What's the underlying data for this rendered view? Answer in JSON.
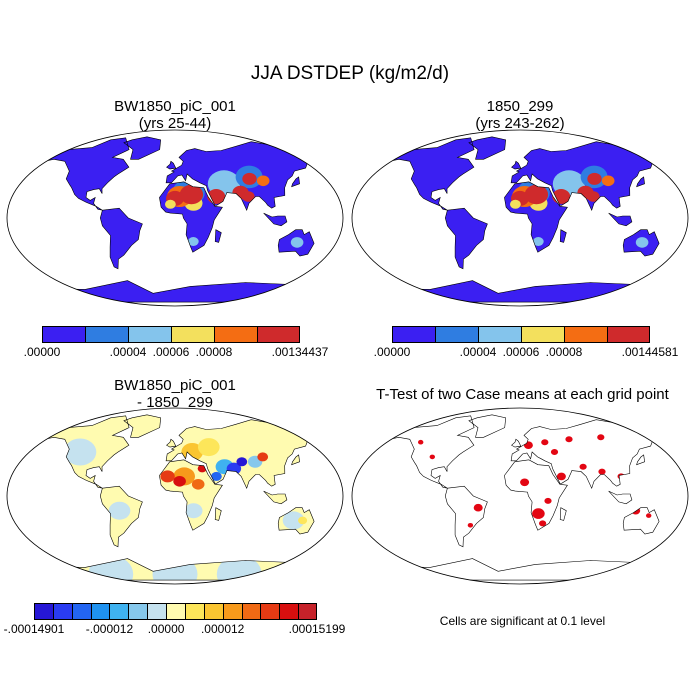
{
  "figure": {
    "title": "JJA DSTDEP (kg/m2/d)"
  },
  "panels": [
    {
      "id": "case1",
      "title_line1": "BW1850_piC_001",
      "title_line2": "(yrs 25-44)"
    },
    {
      "id": "case2",
      "title_line1": "1850_299",
      "title_line2": "(yrs 243-262)"
    },
    {
      "id": "diff",
      "title_line1": "BW1850_piC_001",
      "title_line2": "- 1850_299"
    },
    {
      "id": "ttest",
      "title_line1": "T-Test of two Case means at each grid point",
      "footnote": "Cells are significant at 0.1 level"
    }
  ],
  "colors": {
    "land_low": "#3b1ff2",
    "ocean": "#ffffff",
    "coast": "#000000",
    "significant": "#e30613"
  },
  "chart_data": [
    {
      "type": "heatmap",
      "name": "BW1850_piC_001 (yrs 25-44)",
      "variable": "DSTDEP",
      "season": "JJA",
      "units": "kg/m2/d",
      "colorbar": {
        "colors": [
          "#3b1ff2",
          "#2f7de1",
          "#84c4ec",
          "#f3e05d",
          "#f46d13",
          "#cf2a2c"
        ],
        "tick_labels": [
          ".00000",
          ".00004",
          ".00006",
          ".00008",
          ".00134437"
        ],
        "tick_after_box": [
          0,
          2,
          3,
          4,
          6
        ]
      },
      "regions": [
        {
          "region": "North Africa / Sahara",
          "level": "max"
        },
        {
          "region": "Arabian Peninsula",
          "level": "max"
        },
        {
          "region": "Indian subcontinent",
          "level": "max"
        },
        {
          "region": "Central Asia / Taklamakan",
          "level": "high"
        },
        {
          "region": "Sahel",
          "level": "medium"
        },
        {
          "region": "Australia interior",
          "level": "low-medium"
        },
        {
          "region": "Rest of land",
          "level": "min"
        }
      ]
    },
    {
      "type": "heatmap",
      "name": "1850_299 (yrs 243-262)",
      "variable": "DSTDEP",
      "season": "JJA",
      "units": "kg/m2/d",
      "colorbar": {
        "colors": [
          "#3b1ff2",
          "#2f7de1",
          "#84c4ec",
          "#f3e05d",
          "#f46d13",
          "#cf2a2c"
        ],
        "tick_labels": [
          ".00000",
          ".00004",
          ".00006",
          ".00008",
          ".00144581"
        ],
        "tick_after_box": [
          0,
          2,
          3,
          4,
          6
        ]
      },
      "regions": [
        {
          "region": "North Africa / Sahara",
          "level": "max"
        },
        {
          "region": "Arabian Peninsula",
          "level": "max"
        },
        {
          "region": "Indian subcontinent",
          "level": "max"
        },
        {
          "region": "Central Asia / Taklamakan",
          "level": "high"
        },
        {
          "region": "Sahel",
          "level": "medium"
        },
        {
          "region": "Australia interior",
          "level": "low-medium"
        },
        {
          "region": "Rest of land",
          "level": "min"
        }
      ]
    },
    {
      "type": "heatmap",
      "name": "BW1850_piC_001 - 1850_299",
      "variable": "DSTDEP difference",
      "units": "kg/m2/d",
      "colorbar": {
        "colors": [
          "#2617d6",
          "#2a3cf2",
          "#2365f2",
          "#1f92f0",
          "#3fb2f0",
          "#86c8ec",
          "#c5e2ef",
          "#fffbb0",
          "#fde65a",
          "#fac531",
          "#f79a1b",
          "#f06a14",
          "#e63b14",
          "#d80f0f",
          "#c6222a"
        ],
        "tick_labels": [
          "-.00014901",
          "-.000012",
          ".00000",
          ".000012",
          ".00015199"
        ],
        "tick_after_box": [
          0,
          4,
          7,
          10,
          15
        ]
      },
      "regions": [
        {
          "region": "Western Sahara / Mauritania",
          "sign": "positive"
        },
        {
          "region": "Sahel",
          "sign": "positive"
        },
        {
          "region": "Arabian Sea coast / Pakistan",
          "sign": "negative"
        },
        {
          "region": "Tibet / Central Asia",
          "sign": "mixed"
        },
        {
          "region": "Mediterranean Europe",
          "sign": "positive"
        },
        {
          "region": "Americas",
          "sign": "near zero"
        },
        {
          "region": "Antarctica",
          "sign": "near zero"
        }
      ]
    },
    {
      "type": "heatmap",
      "name": "T-Test of two Case means at each grid point",
      "significance_level": 0.1,
      "regions_significant": [
        "Europe",
        "Southern Africa",
        "Sahel",
        "Arabian Peninsula",
        "Siberia",
        "Southeast Asia",
        "Australia (north)",
        "South America (east)"
      ]
    }
  ]
}
